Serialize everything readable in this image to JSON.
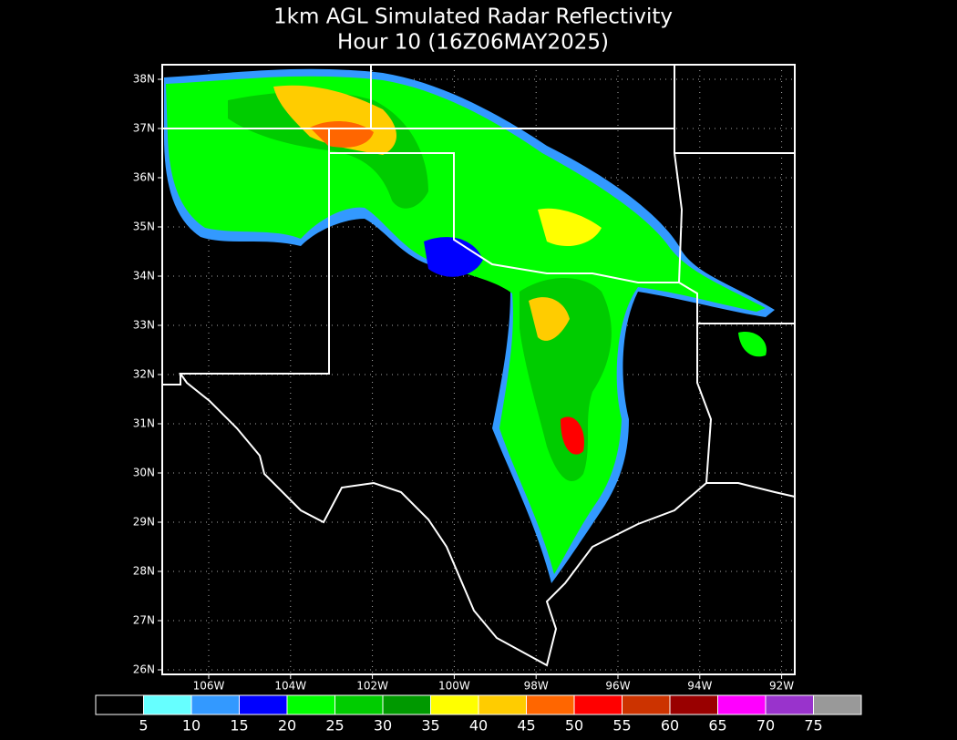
{
  "title": [
    "1km AGL Simulated Radar Reflectivity",
    "Hour 10 (16Z06MAY2025)"
  ],
  "lat_labels": [
    "38N",
    "37N",
    "36N",
    "35N",
    "34N",
    "33N",
    "32N",
    "31N",
    "30N",
    "29N",
    "28N",
    "27N",
    "26N"
  ],
  "lon_labels": [
    "106W",
    "104W",
    "102W",
    "100W",
    "98W",
    "96W",
    "94W",
    "92W"
  ],
  "colorbar": {
    "colors": [
      "#000000",
      "#66ffff",
      "#3399ff",
      "#0000ff",
      "#00ff00",
      "#00cc00",
      "#009900",
      "#ffff00",
      "#ffcc00",
      "#ff6600",
      "#ff0000",
      "#cc3300",
      "#990000",
      "#ff00ff",
      "#9933cc",
      "#999999"
    ],
    "labels": [
      5,
      10,
      15,
      20,
      25,
      30,
      35,
      40,
      45,
      50,
      55,
      60,
      65,
      70,
      75
    ]
  }
}
